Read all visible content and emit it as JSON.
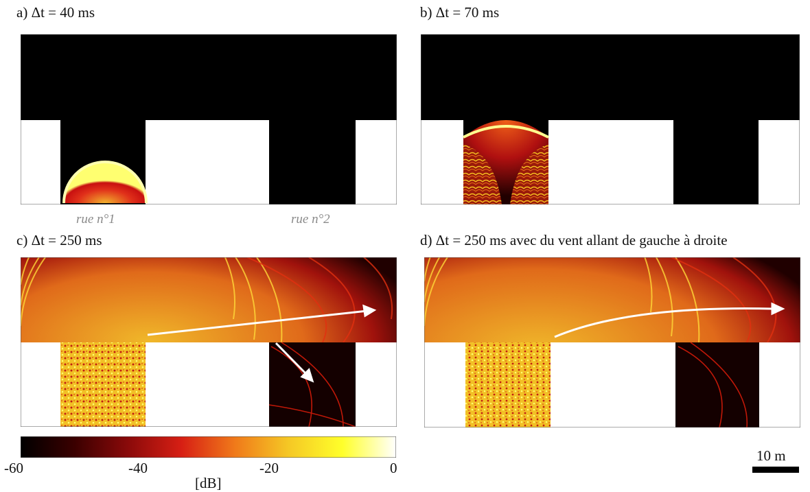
{
  "panels": [
    {
      "label": "a) Δt  = 40 ms"
    },
    {
      "label": "b) Δt  = 70 ms"
    },
    {
      "label": "c) Δt  = 250 ms"
    },
    {
      "label": "d) Δt  = 250 ms avec du vent allant de gauche à droite"
    }
  ],
  "streets": {
    "street1": "rue n°1",
    "street2": "rue n°2"
  },
  "colorbar": {
    "unit": "[dB]",
    "ticks": [
      "-60",
      "-40",
      "-20",
      "0"
    ],
    "colors": [
      "#000000",
      "#3a0000",
      "#8a0a0a",
      "#d71f14",
      "#f07a1a",
      "#f5c825",
      "#ffff2a",
      "#ffffff"
    ]
  },
  "scale": {
    "label": "10 m"
  }
}
